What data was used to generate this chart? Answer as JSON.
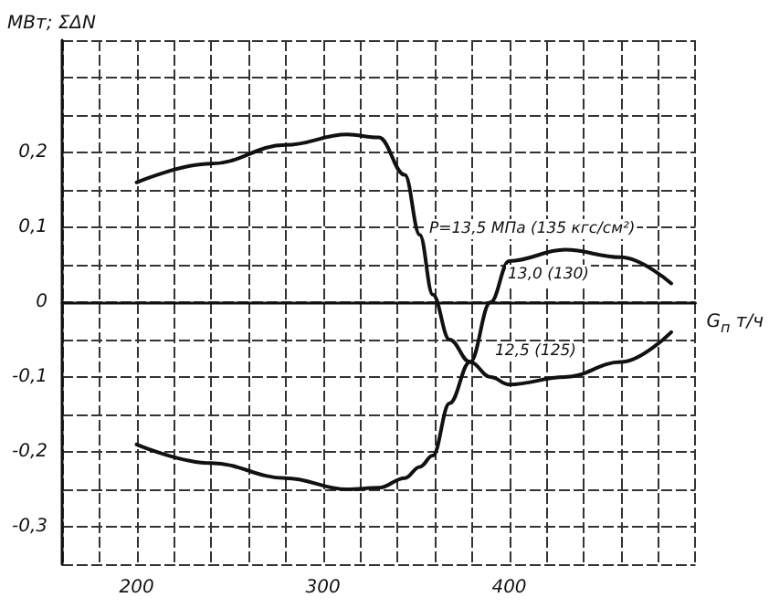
{
  "chart_data": {
    "type": "line",
    "ylabel": "МВт; ΣΔN",
    "xlabel": "G$_{п}$ т/ч",
    "x": [
      200,
      240,
      280,
      313,
      330,
      344,
      352,
      359,
      368,
      379,
      390,
      400,
      430,
      460,
      487
    ],
    "series": [
      {
        "color": "#111111",
        "values": [
          0.16,
          0.185,
          0.21,
          0.224,
          0.22,
          0.17,
          0.09,
          0.01,
          -0.05,
          -0.08,
          -0.1,
          -0.11,
          -0.1,
          -0.08,
          -0.04
        ]
      },
      {
        "color": "#111111",
        "values": [
          -0.19,
          -0.215,
          -0.235,
          -0.25,
          -0.248,
          -0.235,
          -0.22,
          -0.205,
          -0.135,
          -0.08,
          0.0,
          0.055,
          0.07,
          0.06,
          0.025
        ]
      }
    ],
    "xlim": [
      160,
      500
    ],
    "xticks": [
      {
        "value": 160,
        "label": null
      },
      {
        "value": 180,
        "label": null
      },
      200,
      {
        "value": 220,
        "label": null
      },
      {
        "value": 240,
        "label": null
      },
      {
        "value": 260,
        "label": null
      },
      {
        "value": 280,
        "label": null
      },
      300,
      {
        "value": 320,
        "label": null
      },
      {
        "value": 340,
        "label": null
      },
      {
        "value": 360,
        "label": null
      },
      {
        "value": 380,
        "label": null
      },
      400,
      {
        "value": 420,
        "label": null
      },
      {
        "value": 440,
        "label": null
      },
      {
        "value": 460,
        "label": null
      },
      {
        "value": 480,
        "label": null
      },
      {
        "value": 500,
        "label": null
      }
    ],
    "ylim": [
      -0.35,
      0.35
    ],
    "yticks": [
      {
        "value": -0.35,
        "label": null
      },
      {
        "value": -0.3,
        "label": "-0,3"
      },
      {
        "value": -0.25,
        "label": null
      },
      {
        "value": -0.2,
        "label": "-0,2"
      },
      {
        "value": -0.15,
        "label": null
      },
      {
        "value": -0.1,
        "label": "-0,1"
      },
      {
        "value": -0.05,
        "label": null
      },
      0,
      {
        "value": 0.05,
        "label": null
      },
      {
        "value": 0.1,
        "label": "0,1"
      },
      {
        "value": 0.15,
        "label": null
      },
      {
        "value": 0.2,
        "label": "0,2"
      },
      {
        "value": 0.25,
        "label": null
      },
      {
        "value": 0.3,
        "label": null
      },
      {
        "value": 0.35,
        "label": null
      }
    ],
    "grid": true,
    "marker": "none",
    "line_style": "solid",
    "annotations": [
      "P=13,5 МПа (135 кгс/см²)",
      "13,0 (130)",
      "12,5 (125)"
    ]
  }
}
